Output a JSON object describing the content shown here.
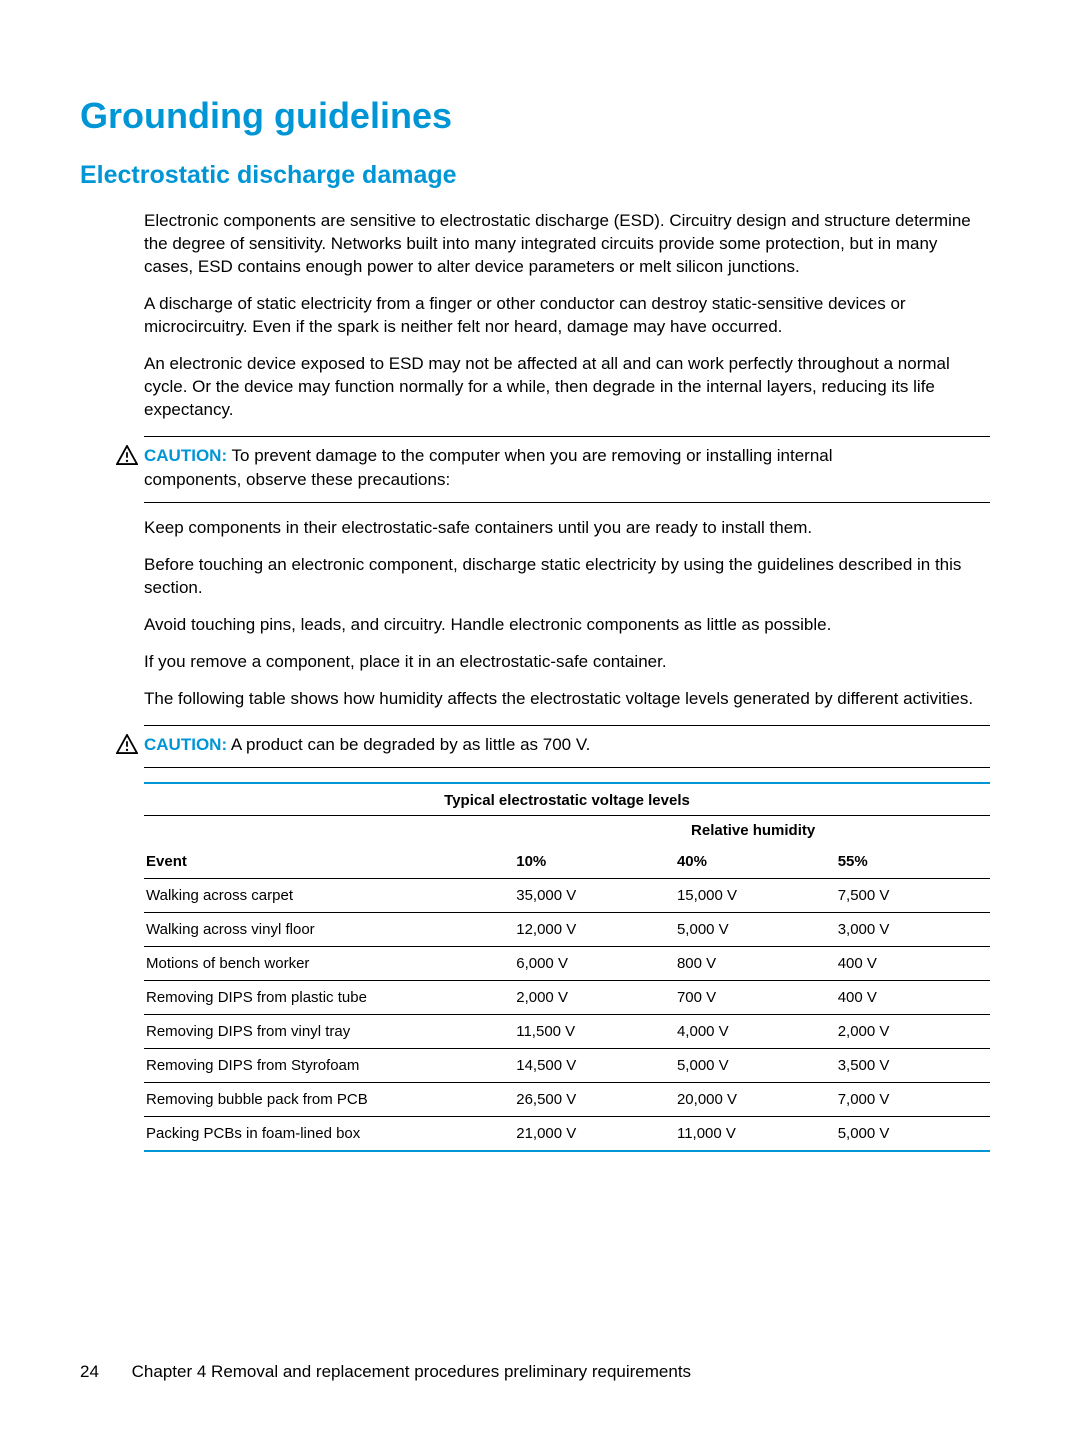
{
  "colors": {
    "accent": "#0096d6",
    "text": "#000000",
    "background": "#ffffff"
  },
  "heading1": "Grounding guidelines",
  "heading2": "Electrostatic discharge damage",
  "paragraphs": {
    "p1": "Electronic components are sensitive to electrostatic discharge (ESD). Circuitry design and structure determine the degree of sensitivity. Networks built into many integrated circuits provide some protection, but in many cases, ESD contains enough power to alter device parameters or melt silicon junctions.",
    "p2": "A discharge of static electricity from a finger or other conductor can destroy static-sensitive devices or microcircuitry. Even if the spark is neither felt nor heard, damage may have occurred.",
    "p3": "An electronic device exposed to ESD may not be affected at all and can work perfectly throughout a normal cycle. Or the device may function normally for a while, then degrade in the internal layers, reducing its life expectancy."
  },
  "caution1": {
    "label": "CAUTION:",
    "line1": "To prevent damage to the computer when you are removing or installing internal",
    "rest": "components, observe these precautions:"
  },
  "precautions": {
    "p1": "Keep components in their electrostatic-safe containers until you are ready to install them.",
    "p2": "Before touching an electronic component, discharge static electricity by using the guidelines described in this section.",
    "p3": "Avoid touching pins, leads, and circuitry. Handle electronic components as little as possible.",
    "p4": "If you remove a component, place it in an electrostatic-safe container.",
    "p5": "The following table shows how humidity affects the electrostatic voltage levels generated by different activities."
  },
  "caution2": {
    "label": "CAUTION:",
    "text": "A product can be degraded by as little as 700 V."
  },
  "table": {
    "title": "Typical electrostatic voltage levels",
    "subhead": "Relative humidity",
    "columns": [
      "Event",
      "10%",
      "40%",
      "55%"
    ],
    "rows": [
      [
        "Walking across carpet",
        "35,000 V",
        "15,000 V",
        "7,500 V"
      ],
      [
        "Walking across vinyl floor",
        "12,000 V",
        "5,000 V",
        "3,000 V"
      ],
      [
        "Motions of bench worker",
        "6,000 V",
        "800 V",
        "400 V"
      ],
      [
        "Removing DIPS from plastic tube",
        "2,000 V",
        "700 V",
        "400 V"
      ],
      [
        "Removing DIPS from vinyl tray",
        "11,500 V",
        "4,000 V",
        "2,000 V"
      ],
      [
        "Removing DIPS from Styrofoam",
        "14,500 V",
        "5,000 V",
        "3,500 V"
      ],
      [
        "Removing bubble pack from PCB",
        "26,500 V",
        "20,000 V",
        "7,000 V"
      ],
      [
        "Packing PCBs in foam-lined box",
        "21,000 V",
        "11,000 V",
        "5,000 V"
      ]
    ]
  },
  "footer": {
    "page": "24",
    "chapter": "Chapter 4   Removal and replacement procedures preliminary requirements"
  }
}
